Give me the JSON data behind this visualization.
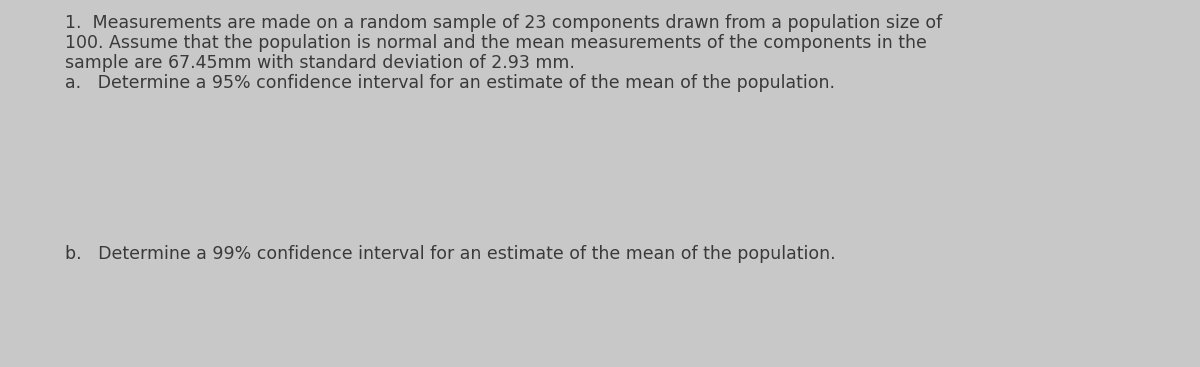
{
  "background_color": "#c8c8c8",
  "text_color": "#3a3a3a",
  "line1": "1.  Measurements are made on a random sample of 23 components drawn from a population size of",
  "line2": "100. Assume that the population is normal and the mean measurements of the components in the",
  "line3": "sample are 67.45mm with standard deviation of 2.93 mm.",
  "line4": "a.   Determine a 95% confidence interval for an estimate of the mean of the population.",
  "line5": "b.   Determine a 99% confidence interval for an estimate of the mean of the population.",
  "font_size": 12.5,
  "font_family": "DejaVu Sans",
  "figsize": [
    12.0,
    3.67
  ],
  "dpi": 100
}
